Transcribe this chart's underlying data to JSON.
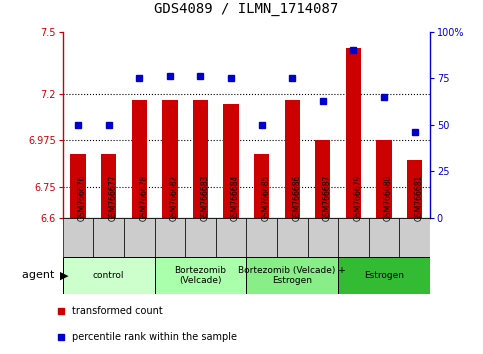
{
  "title": "GDS4089 / ILMN_1714087",
  "samples": [
    "GSM766676",
    "GSM766677",
    "GSM766678",
    "GSM766682",
    "GSM766683",
    "GSM766684",
    "GSM766685",
    "GSM766686",
    "GSM766687",
    "GSM766679",
    "GSM766680",
    "GSM766681"
  ],
  "transformed_count": [
    6.91,
    6.91,
    7.17,
    7.17,
    7.17,
    7.15,
    6.91,
    7.17,
    6.975,
    7.42,
    6.975,
    6.88
  ],
  "percentile_rank": [
    50,
    50,
    75,
    76,
    76,
    75,
    50,
    75,
    63,
    90,
    65,
    46
  ],
  "ylim_left": [
    6.6,
    7.5
  ],
  "ylim_right": [
    0,
    100
  ],
  "yticks_left": [
    6.6,
    6.75,
    6.975,
    7.2,
    7.5
  ],
  "ytick_labels_left": [
    "6.6",
    "6.75",
    "6.975",
    "7.2",
    "7.5"
  ],
  "yticks_right": [
    0,
    25,
    50,
    75,
    100
  ],
  "ytick_labels_right": [
    "0",
    "25",
    "50",
    "75",
    "100%"
  ],
  "hlines": [
    6.75,
    6.975,
    7.2
  ],
  "bar_color": "#cc0000",
  "dot_color": "#0000cc",
  "groups": [
    {
      "label": "control",
      "start": 0,
      "end": 3,
      "color": "#ccffcc"
    },
    {
      "label": "Bortezomib\n(Velcade)",
      "start": 3,
      "end": 6,
      "color": "#aaffaa"
    },
    {
      "label": "Bortezomib (Velcade) +\nEstrogen",
      "start": 6,
      "end": 9,
      "color": "#88ee88"
    },
    {
      "label": "Estrogen",
      "start": 9,
      "end": 12,
      "color": "#33bb33"
    }
  ],
  "legend_bar_label": "transformed count",
  "legend_dot_label": "percentile rank within the sample",
  "xlabel_agent": "agent",
  "left_axis_color": "#cc0000",
  "right_axis_color": "#0000cc",
  "sample_box_color": "#cccccc",
  "bar_width": 0.5
}
